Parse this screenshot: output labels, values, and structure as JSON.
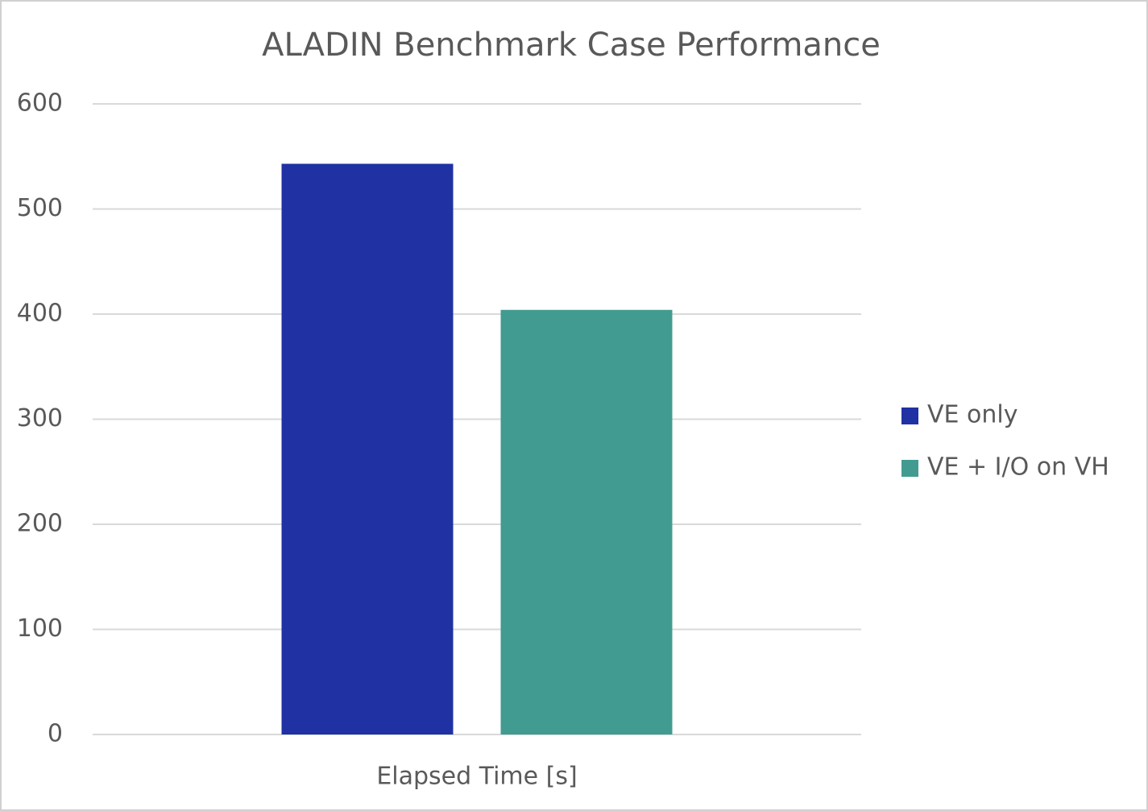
{
  "chart_data": {
    "type": "bar",
    "title": "ALADIN Benchmark Case Performance",
    "categories": [
      "Elapsed Time [s]"
    ],
    "series": [
      {
        "name": "VE only",
        "color": "#1f31a3",
        "values": [
          543
        ]
      },
      {
        "name": "VE + I/O on VH",
        "color": "#429b91",
        "values": [
          404
        ]
      }
    ],
    "ylim": [
      0,
      600
    ],
    "yticks": [
      0,
      100,
      200,
      300,
      400,
      500,
      600
    ],
    "grid": true,
    "legend": "right"
  }
}
